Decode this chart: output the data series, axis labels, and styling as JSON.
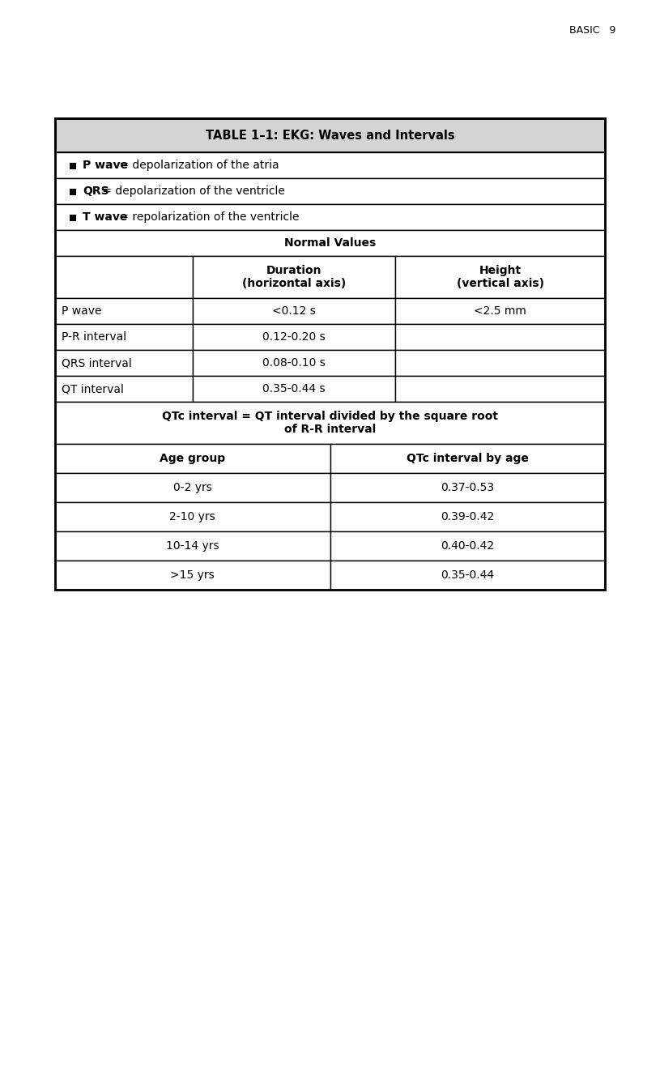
{
  "page_header": "BASIC   9",
  "table_title": "TABLE 1–1: EKG: Waves and Intervals",
  "bullet_rows": [
    {
      "bold_part": "P wave",
      "rest": " = depolarization of the atria"
    },
    {
      "bold_part": "QRS",
      "rest": " = depolarization of the ventricle"
    },
    {
      "bold_part": "T wave",
      "rest": " = repolarization of the ventricle"
    }
  ],
  "normal_values_header": "Normal Values",
  "col_headers": [
    "",
    "Duration\n(horizontal axis)",
    "Height\n(vertical axis)"
  ],
  "data_rows": [
    [
      "P wave",
      "<0.12 s",
      "<2.5 mm"
    ],
    [
      "P-R interval",
      "0.12-0.20 s",
      ""
    ],
    [
      "QRS interval",
      "0.08-0.10 s",
      ""
    ],
    [
      "QT interval",
      "0.35-0.44 s",
      ""
    ]
  ],
  "qtc_note": "QTc interval = QT interval divided by the square root\nof R-R interval",
  "age_headers": [
    "Age group",
    "QTc interval by age"
  ],
  "age_rows": [
    [
      "0-2 yrs",
      "0.37-0.53"
    ],
    [
      "2-10 yrs",
      "0.39-0.42"
    ],
    [
      "10-14 yrs",
      "0.40-0.42"
    ],
    [
      ">15 yrs",
      "0.35-0.44"
    ]
  ],
  "bg_white": "#ffffff",
  "bg_gray": "#d4d4d4",
  "border_color": "#000000",
  "text_color": "#000000",
  "title_fontsize": 10.5,
  "body_fontsize": 10,
  "header_fontsize": 10
}
